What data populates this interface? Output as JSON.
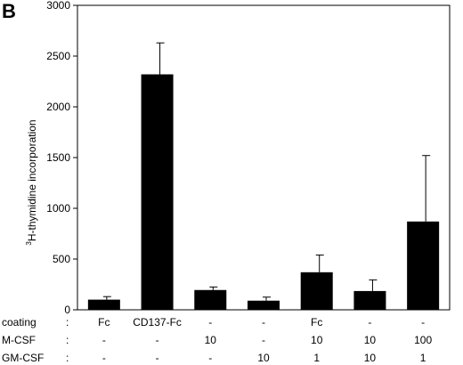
{
  "chart_data": {
    "type": "bar",
    "panel_label": "B",
    "ylabel_sup": "3",
    "ylabel_rest": "H-thymidine incorporation",
    "ylim": [
      0,
      3000
    ],
    "yticks": [
      0,
      500,
      1000,
      1500,
      2000,
      2500,
      3000
    ],
    "values": [
      100,
      2320,
      195,
      90,
      370,
      185,
      870
    ],
    "errors": [
      30,
      310,
      30,
      35,
      170,
      110,
      650
    ],
    "bar_color": "#000000",
    "conditions": [
      {
        "label": "coating",
        "sep": ":",
        "values": [
          "Fc",
          "CD137-Fc",
          "-",
          "-",
          "Fc",
          "-",
          "-"
        ]
      },
      {
        "label": "M-CSF",
        "sep": ":",
        "values": [
          "-",
          "-",
          "10",
          "-",
          "10",
          "10",
          "100"
        ]
      },
      {
        "label": "GM-CSF",
        "sep": ":",
        "values": [
          "-",
          "-",
          "-",
          "10",
          "1",
          "10",
          "1"
        ]
      }
    ]
  }
}
